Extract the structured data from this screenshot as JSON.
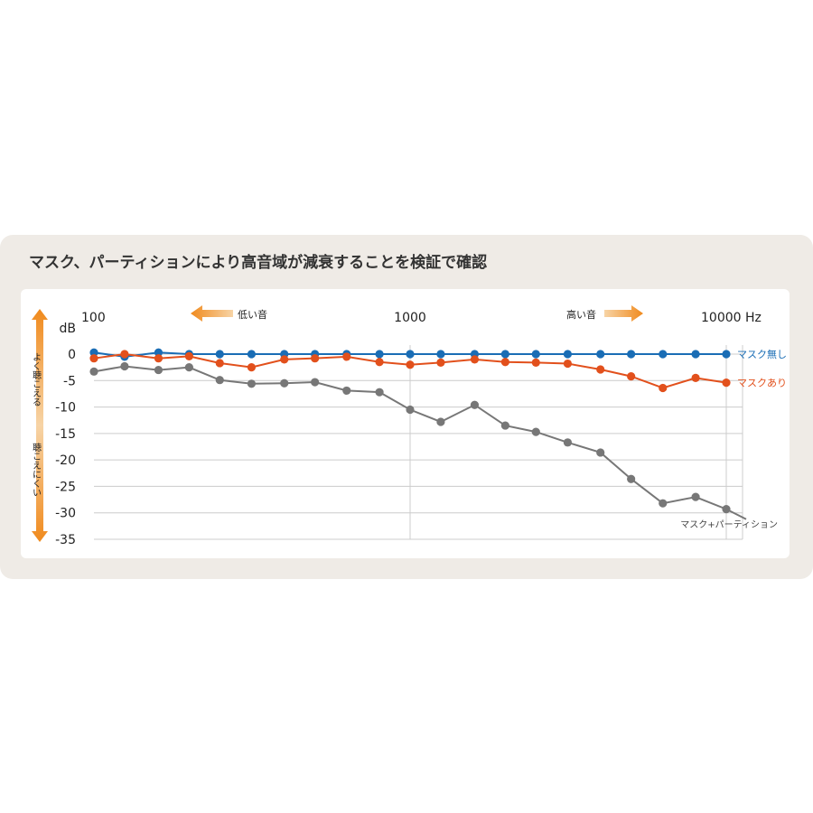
{
  "title": "マスク、パーティションにより高音域が減衰することを検証で確認",
  "chart_data": {
    "type": "line",
    "x_tick_labels": [
      "100",
      "1000",
      "10000 Hz"
    ],
    "x_ticks": [
      100,
      1000,
      10000
    ],
    "xlim": [
      100,
      10000
    ],
    "x_scale": "log",
    "ylabel": "dB",
    "ylim": [
      -35,
      0
    ],
    "y_ticks": [
      0,
      -5,
      -10,
      -15,
      -20,
      -25,
      -30,
      -35
    ],
    "grid": true,
    "direction_low_label": "低い音",
    "direction_high_label": "高い音",
    "y_up_label": "よく聴こえる",
    "y_down_label": "聴こえにくい",
    "x": [
      100,
      125,
      160,
      200,
      250,
      315,
      400,
      500,
      630,
      800,
      1000,
      1250,
      1600,
      2000,
      2500,
      3150,
      4000,
      5000,
      6300,
      8000,
      10000
    ],
    "series": [
      {
        "name": "マスク無し",
        "color": "#1a6db5",
        "values": [
          0.3,
          -0.5,
          0.3,
          0,
          0,
          0,
          0,
          0,
          0,
          0,
          0,
          0,
          0,
          0,
          0,
          0,
          0,
          0,
          0,
          0,
          0
        ]
      },
      {
        "name": "マスクあり",
        "color": "#e2501c",
        "values": [
          -0.8,
          0,
          -0.8,
          -0.4,
          -1.7,
          -2.5,
          -1.0,
          -0.8,
          -0.5,
          -1.5,
          -2.0,
          -1.6,
          -1.0,
          -1.5,
          -1.6,
          -1.8,
          -2.9,
          -4.2,
          -6.4,
          -4.5,
          -5.4
        ]
      },
      {
        "name": "マスク+パーティション",
        "color": "#777777",
        "values": [
          -3.3,
          -2.3,
          -3.0,
          -2.5,
          -4.9,
          -5.6,
          -5.5,
          -5.3,
          -6.9,
          -7.2,
          -10.5,
          -12.8,
          -9.6,
          -13.5,
          -14.7,
          -16.7,
          -18.6,
          -23.6,
          -28.2,
          -27.0,
          -29.3
        ]
      }
    ]
  }
}
